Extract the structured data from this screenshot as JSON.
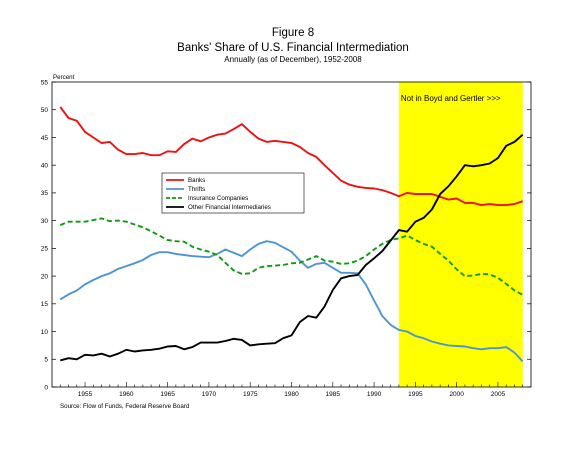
{
  "chart_data": {
    "type": "line",
    "title": "Figure 8",
    "subtitle": "Banks' Share of U.S. Financial Intermediation",
    "note": "Annually (as of December), 1952-2008",
    "ylabel": "Percent",
    "xlabel": "",
    "source": "Source: Flow of Funds, Federal Reserve Board",
    "xlim": [
      1951,
      2009
    ],
    "ylim": [
      0,
      55
    ],
    "x_ticks": [
      1955,
      1960,
      1965,
      1970,
      1975,
      1980,
      1985,
      1990,
      1995,
      2000,
      2005
    ],
    "x_tick_labels": [
      "1955",
      "1960",
      "1965",
      "1970",
      "1975",
      "1980",
      "1985",
      "1990",
      "1995",
      "2000",
      "2005"
    ],
    "y_ticks": [
      0,
      5,
      10,
      15,
      20,
      25,
      30,
      35,
      40,
      45,
      50,
      55
    ],
    "y_tick_labels": [
      "0",
      "5",
      "10",
      "15",
      "20",
      "25",
      "30",
      "35",
      "40",
      "45",
      "50",
      "55"
    ],
    "grid": false,
    "legend_position": "center-left",
    "shaded_region": {
      "x_start": 1993,
      "x_end": 2008,
      "label": "Not in Boyd and Gertler >>>",
      "color": "#ffff00"
    },
    "x": [
      1952,
      1953,
      1954,
      1955,
      1956,
      1957,
      1958,
      1959,
      1960,
      1961,
      1962,
      1963,
      1964,
      1965,
      1966,
      1967,
      1968,
      1969,
      1970,
      1971,
      1972,
      1973,
      1974,
      1975,
      1976,
      1977,
      1978,
      1979,
      1980,
      1981,
      1982,
      1983,
      1984,
      1985,
      1986,
      1987,
      1988,
      1989,
      1990,
      1991,
      1992,
      1993,
      1994,
      1995,
      1996,
      1997,
      1998,
      1999,
      2000,
      2001,
      2002,
      2003,
      2004,
      2005,
      2006,
      2007,
      2008
    ],
    "series": [
      {
        "name": "Banks",
        "color": "#ee1111",
        "style": "solid",
        "values": [
          50.5,
          48.5,
          48,
          46,
          45,
          44,
          44.2,
          42.8,
          42,
          42,
          42.2,
          41.8,
          41.8,
          42.5,
          42.4,
          43.8,
          44.8,
          44.3,
          45,
          45.5,
          45.7,
          46.5,
          47.4,
          46,
          44.8,
          44.2,
          44.4,
          44.2,
          44,
          43.3,
          42.2,
          41.5,
          40,
          38.6,
          37.2,
          36.5,
          36.1,
          35.9,
          35.8,
          35.5,
          35,
          34.4,
          35,
          34.8,
          34.8,
          34.8,
          34.3,
          33.8,
          34,
          33.2,
          33.2,
          32.8,
          33,
          32.8,
          32.8,
          33,
          33.5
        ]
      },
      {
        "name": "Thrifts",
        "color": "#4d95d2",
        "style": "solid",
        "values": [
          15.8,
          16.7,
          17.4,
          18.5,
          19.3,
          20,
          20.5,
          21.3,
          21.8,
          22.3,
          22.9,
          23.8,
          24.3,
          24.3,
          24,
          23.8,
          23.6,
          23.5,
          23.4,
          24,
          24.8,
          24.2,
          23.6,
          24.8,
          25.8,
          26.3,
          26,
          25.2,
          24.4,
          22.8,
          21.5,
          22.2,
          22.4,
          21.5,
          20.6,
          20.6,
          20.5,
          18.5,
          15.6,
          12.8,
          11.2,
          10.3,
          10,
          9.2,
          8.8,
          8.2,
          7.8,
          7.5,
          7.4,
          7.3,
          7,
          6.8,
          7,
          7,
          7.2,
          6.2,
          4.6
        ]
      },
      {
        "name": "Insurance Companies",
        "color": "#119911",
        "style": "dashed",
        "values": [
          29.2,
          29.8,
          29.8,
          29.8,
          30.1,
          30.4,
          29.9,
          30,
          29.8,
          29.3,
          28.8,
          28.1,
          27.3,
          26.5,
          26.3,
          26.2,
          25.3,
          24.8,
          24.4,
          23.8,
          22.4,
          21,
          20.4,
          20.5,
          21.5,
          21.8,
          21.9,
          22,
          22.3,
          22.4,
          23,
          23.6,
          22.8,
          22.6,
          22.2,
          22.3,
          22.8,
          23.6,
          24.8,
          25.8,
          26.5,
          26.8,
          27.3,
          26.5,
          25.8,
          25.3,
          24,
          22.8,
          21.2,
          20,
          20.1,
          20.4,
          20.3,
          19.7,
          18.6,
          17.4,
          16.6
        ]
      },
      {
        "name": "Other Financial Intermediaries",
        "color": "#000000",
        "style": "solid",
        "values": [
          4.8,
          5.2,
          5,
          5.8,
          5.7,
          6,
          5.5,
          6,
          6.7,
          6.4,
          6.6,
          6.7,
          6.9,
          7.3,
          7.4,
          6.8,
          7.2,
          8,
          8,
          8,
          8.3,
          8.7,
          8.5,
          7.5,
          7.7,
          7.8,
          7.9,
          8.8,
          9.3,
          11.7,
          12.8,
          12.5,
          14.5,
          17.5,
          19.6,
          20,
          20.2,
          22,
          23.2,
          24.5,
          26.4,
          28.3,
          28,
          29.8,
          30.5,
          32,
          34.8,
          36.2,
          38,
          40,
          39.8,
          40,
          40.3,
          41.3,
          43.5,
          44.2,
          45.5
        ]
      }
    ]
  }
}
